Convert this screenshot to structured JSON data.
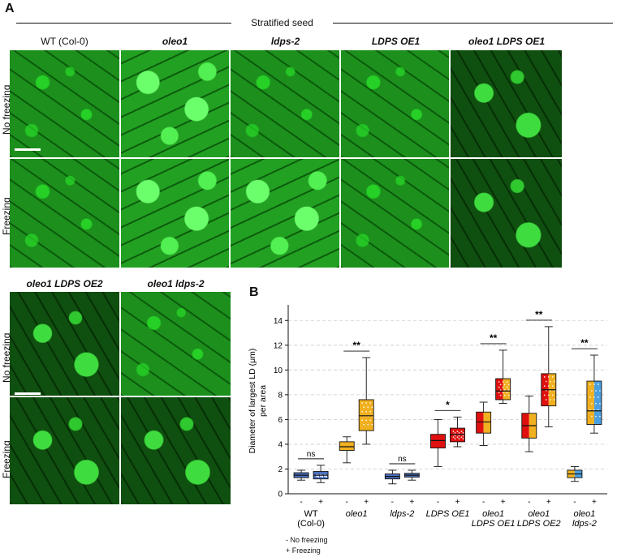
{
  "panelA": {
    "letter": "A",
    "header": "Stratified seed",
    "columns": [
      {
        "label": "WT (Col-0)",
        "italic": false
      },
      {
        "label": "oleo1",
        "italic": true
      },
      {
        "label": "ldps-2",
        "italic": true
      },
      {
        "label": "LDPS OE1",
        "italic": true
      },
      {
        "label": "oleo1 LDPS OE1",
        "italic": true
      }
    ],
    "rows": [
      "No freezing",
      "Freezing"
    ]
  },
  "panelA2": {
    "columns": [
      {
        "label": "oleo1 LDPS OE2",
        "italic": true
      },
      {
        "label": "oleo1 ldps-2",
        "italic": true
      }
    ],
    "rows": [
      "No freezing",
      "Freezing"
    ]
  },
  "panelB": {
    "letter": "B"
  },
  "legend": {
    "minus": "- No freezing",
    "plus": "+ Freezing"
  },
  "chart_data": {
    "type": "box",
    "ylabel": "Diameter of largest LD (μm) per area",
    "ylim": [
      0,
      15
    ],
    "yticks": [
      0,
      2,
      4,
      6,
      8,
      10,
      12,
      14
    ],
    "grid": "horizontal dashed",
    "conditions": [
      "-",
      "+"
    ],
    "groups": [
      {
        "label": "WT\n(Col-0)",
        "italic": false,
        "color": "#4a6fbf",
        "boxes": [
          {
            "cond": "-",
            "min": 1.1,
            "q1": 1.3,
            "median": 1.5,
            "q3": 1.7,
            "max": 1.9
          },
          {
            "cond": "+",
            "min": 0.9,
            "q1": 1.2,
            "median": 1.5,
            "q3": 1.8,
            "max": 2.3
          }
        ],
        "sig": "ns"
      },
      {
        "label": "oleo1",
        "italic": true,
        "color": "#f0b020",
        "boxes": [
          {
            "cond": "-",
            "min": 2.5,
            "q1": 3.5,
            "median": 3.8,
            "q3": 4.2,
            "max": 4.6
          },
          {
            "cond": "+",
            "min": 4.0,
            "q1": 5.1,
            "median": 6.3,
            "q3": 7.6,
            "max": 11.0
          }
        ],
        "sig": "**"
      },
      {
        "label": "ldps-2",
        "italic": true,
        "color": "#4a6fbf",
        "boxes": [
          {
            "cond": "-",
            "min": 0.8,
            "q1": 1.2,
            "median": 1.4,
            "q3": 1.6,
            "max": 1.9
          },
          {
            "cond": "+",
            "min": 1.1,
            "q1": 1.35,
            "median": 1.5,
            "q3": 1.65,
            "max": 1.9
          }
        ],
        "sig": "ns"
      },
      {
        "label": "LDPS OE1",
        "italic": true,
        "color": "#e01010",
        "boxes": [
          {
            "cond": "-",
            "min": 2.2,
            "q1": 3.7,
            "median": 4.3,
            "q3": 4.8,
            "max": 6.0
          },
          {
            "cond": "+",
            "min": 3.8,
            "q1": 4.2,
            "median": 4.8,
            "q3": 5.3,
            "max": 6.2
          }
        ],
        "sig": "*"
      },
      {
        "label": "oleo1\nLDPS OE1",
        "italic": true,
        "color": "#e01010",
        "color2": "#f0b020",
        "boxes": [
          {
            "cond": "-",
            "min": 3.9,
            "q1": 4.9,
            "median": 5.8,
            "q3": 6.6,
            "max": 7.4
          },
          {
            "cond": "+",
            "min": 7.3,
            "q1": 7.6,
            "median": 8.3,
            "q3": 9.3,
            "max": 11.6
          }
        ],
        "sig": "**"
      },
      {
        "label": "oleo1\nLDPS OE2",
        "italic": true,
        "color": "#e01010",
        "color2": "#f0b020",
        "boxes": [
          {
            "cond": "-",
            "min": 3.4,
            "q1": 4.5,
            "median": 5.5,
            "q3": 6.5,
            "max": 7.9
          },
          {
            "cond": "+",
            "min": 5.4,
            "q1": 7.1,
            "median": 8.4,
            "q3": 9.7,
            "max": 13.5
          }
        ],
        "sig": "**"
      },
      {
        "label": "oleo1\nldps-2",
        "italic": true,
        "color": "#f0b020",
        "color2": "#4a9fdf",
        "boxes": [
          {
            "cond": "-",
            "min": 1.0,
            "q1": 1.3,
            "median": 1.6,
            "q3": 1.9,
            "max": 2.2
          },
          {
            "cond": "+",
            "min": 4.9,
            "q1": 5.6,
            "median": 6.7,
            "q3": 9.1,
            "max": 11.2
          }
        ],
        "sig": "**"
      }
    ]
  }
}
